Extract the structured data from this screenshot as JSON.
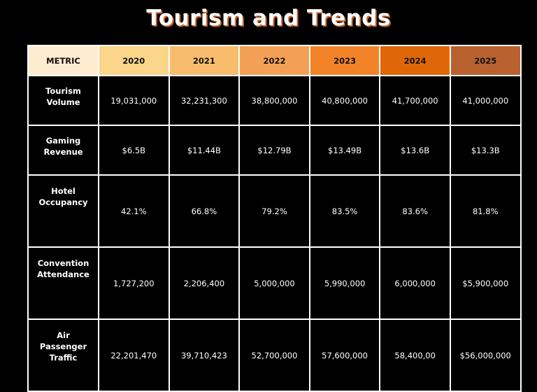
{
  "title": "Tourism and Trends",
  "header": {
    "metric_label": "METRIC",
    "years": [
      "2020",
      "2021",
      "2022",
      "2023",
      "2024",
      "2025"
    ],
    "colors": {
      "metric": "#fdecd0",
      "2020": "#fbd589",
      "2021": "#f7bd6c",
      "2022": "#f3a056",
      "2023": "#f28329",
      "2024": "#e06707",
      "2025": "#b9612f"
    }
  },
  "rows": [
    {
      "metric": "Tourism\nVolume",
      "values": [
        "19,031,000",
        "32,231,300",
        "38,800,000",
        "40,800,000",
        "41,700,000",
        "41,000,000"
      ]
    },
    {
      "metric": "Gaming\nRevenue",
      "values": [
        "$6.5B",
        "$11.44B",
        "$12.79B",
        "$13.49B",
        "$13.6B",
        "$13.3B"
      ]
    },
    {
      "metric": "Hotel\nOccupancy",
      "values": [
        "42.1%",
        "66.8%",
        "79.2%",
        "83.5%",
        "83.6%",
        "81.8%"
      ]
    },
    {
      "metric": "Convention\nAttendance",
      "values": [
        "1,727,200",
        "2,206,400",
        "5,000,000",
        "5,990,000",
        "6,000,000",
        "$5,900,000"
      ]
    },
    {
      "metric": "Air\nPassenger\nTraffic",
      "values": [
        "22,201,470",
        "39,710,423",
        "52,700,000",
        "57,600,000",
        "58,400,00",
        "$56,000,000"
      ]
    }
  ]
}
